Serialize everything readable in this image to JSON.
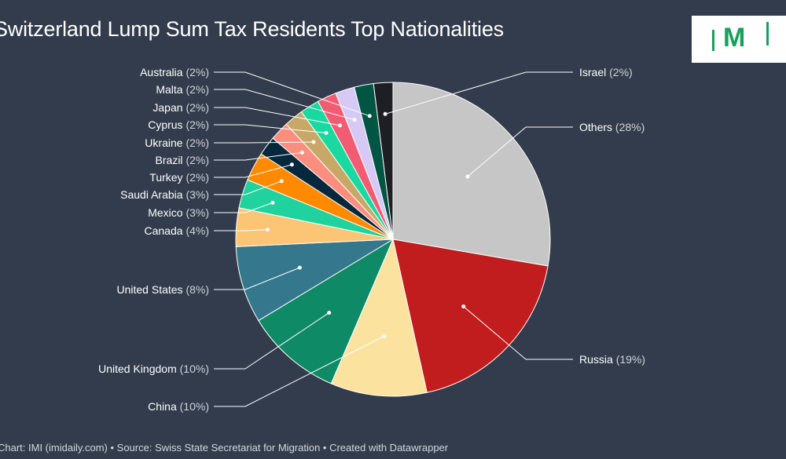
{
  "title": "Switzerland Lump Sum Tax Residents Top Nationalities",
  "footer": "Chart: IMI (imidaily.com) • Source: Swiss State Secretariat for Migration • Created with Datawrapper",
  "logo": {
    "text": "IMI",
    "color": "#17a05b"
  },
  "chart_data": {
    "type": "pie",
    "unit": "%",
    "slices": [
      {
        "name": "Others",
        "value": 28,
        "label": "Others",
        "pct_text": "(28%)",
        "color": "#c6c6c6"
      },
      {
        "name": "Russia",
        "value": 19,
        "label": "Russia",
        "pct_text": "(19%)",
        "color": "#c11d1f"
      },
      {
        "name": "China",
        "value": 10,
        "label": "China",
        "pct_text": "(10%)",
        "color": "#fbe29e"
      },
      {
        "name": "United Kingdom",
        "value": 10,
        "label": "United Kingdom",
        "pct_text": "(10%)",
        "color": "#0f8a66"
      },
      {
        "name": "United States",
        "value": 8,
        "label": "United States",
        "pct_text": "(8%)",
        "color": "#35788e"
      },
      {
        "name": "Canada",
        "value": 4,
        "label": "Canada",
        "pct_text": "(4%)",
        "color": "#fcc575"
      },
      {
        "name": "Mexico",
        "value": 3,
        "label": "Mexico",
        "pct_text": "(3%)",
        "color": "#20d39e"
      },
      {
        "name": "Saudi Arabia",
        "value": 3,
        "label": "Saudi Arabia",
        "pct_text": "(3%)",
        "color": "#ff8a00"
      },
      {
        "name": "Turkey",
        "value": 2,
        "label": "Turkey",
        "pct_text": "(2%)",
        "color": "#06283d"
      },
      {
        "name": "Brazil",
        "value": 2,
        "label": "Brazil",
        "pct_text": "(2%)",
        "color": "#fb8e7f"
      },
      {
        "name": "Ukraine",
        "value": 2,
        "label": "Ukraine",
        "pct_text": "(2%)",
        "color": "#c7a867"
      },
      {
        "name": "Cyprus",
        "value": 2,
        "label": "Cyprus",
        "pct_text": "(2%)",
        "color": "#19d9a0"
      },
      {
        "name": "Japan",
        "value": 2,
        "label": "Japan",
        "pct_text": "(2%)",
        "color": "#f15c72"
      },
      {
        "name": "Malta",
        "value": 2,
        "label": "Malta",
        "pct_text": "(2%)",
        "color": "#d6c9f6"
      },
      {
        "name": "Australia",
        "value": 2,
        "label": "Australia",
        "pct_text": "(2%)",
        "color": "#015543"
      },
      {
        "name": "Israel",
        "value": 2,
        "label": "Israel",
        "pct_text": "(2%)",
        "color": "#1d1f24"
      }
    ]
  }
}
